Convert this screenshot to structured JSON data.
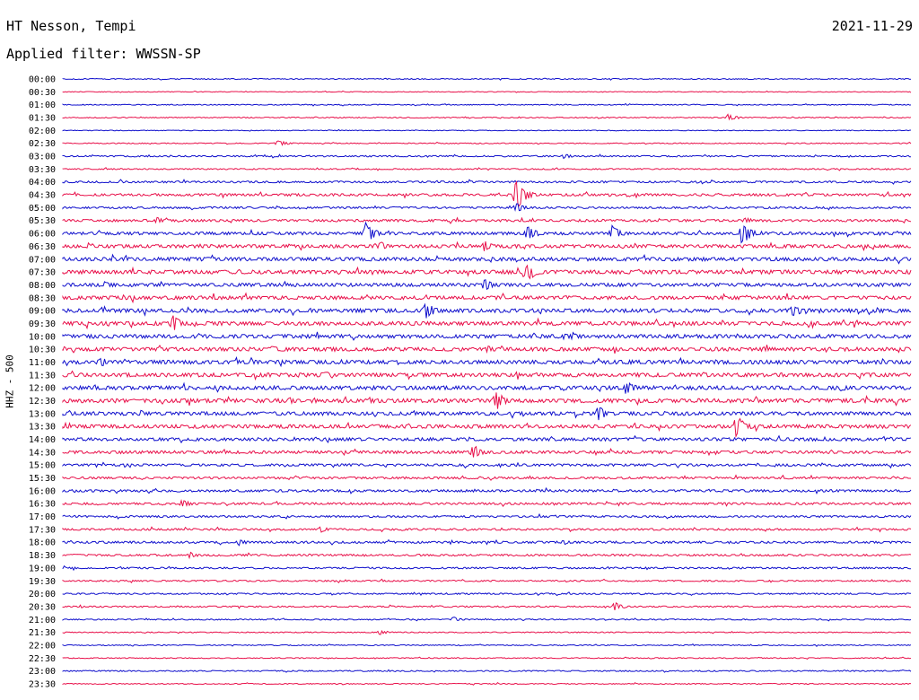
{
  "header": {
    "station": "HT Nesson, Tempi",
    "date": "2021-11-29",
    "filter_label": "Applied filter: WWSSN-SP"
  },
  "colors": {
    "trace_a": "#1010cc",
    "trace_b": "#e8104a",
    "text": "#000000",
    "background": "#ffffff"
  },
  "chart_data": {
    "type": "line",
    "subtype": "helicorder",
    "ylabel": "HHZ - 500",
    "row_interval_minutes": 30,
    "rows": [
      "00:00",
      "00:30",
      "01:00",
      "01:30",
      "02:00",
      "02:30",
      "03:00",
      "03:30",
      "04:00",
      "04:30",
      "05:00",
      "05:30",
      "06:00",
      "06:30",
      "07:00",
      "07:30",
      "08:00",
      "08:30",
      "09:00",
      "09:30",
      "10:00",
      "10:30",
      "11:00",
      "11:30",
      "12:00",
      "12:30",
      "13:00",
      "13:30",
      "14:00",
      "14:30",
      "15:00",
      "15:30",
      "16:00",
      "16:30",
      "17:00",
      "17:30",
      "18:00",
      "18:30",
      "19:00",
      "19:30",
      "20:00",
      "20:30",
      "21:00",
      "21:30",
      "22:00",
      "22:30",
      "23:00",
      "23:30"
    ],
    "noise_level": [
      0.4,
      0.3,
      0.4,
      0.4,
      0.3,
      0.4,
      0.6,
      0.5,
      0.8,
      1.0,
      0.8,
      1.0,
      1.2,
      1.4,
      1.5,
      1.6,
      1.4,
      1.5,
      1.6,
      1.6,
      1.6,
      1.6,
      1.6,
      1.6,
      1.6,
      1.7,
      1.5,
      1.5,
      1.3,
      1.2,
      1.0,
      0.9,
      1.0,
      0.9,
      0.8,
      0.8,
      0.9,
      0.8,
      0.7,
      0.6,
      0.6,
      0.6,
      0.5,
      0.4,
      0.4,
      0.4,
      0.5,
      0.4
    ],
    "events": [
      {
        "row": 3,
        "minute": 23.5,
        "amp": 4
      },
      {
        "row": 5,
        "minute": 7.6,
        "amp": 4
      },
      {
        "row": 6,
        "minute": 17.7,
        "amp": 3
      },
      {
        "row": 9,
        "minute": 16.0,
        "amp": 20
      },
      {
        "row": 10,
        "minute": 16.0,
        "amp": 6
      },
      {
        "row": 11,
        "minute": 3.3,
        "amp": 4
      },
      {
        "row": 11,
        "minute": 24.1,
        "amp": 4
      },
      {
        "row": 12,
        "minute": 10.7,
        "amp": 14
      },
      {
        "row": 12,
        "minute": 16.4,
        "amp": 10
      },
      {
        "row": 12,
        "minute": 19.4,
        "amp": 9
      },
      {
        "row": 12,
        "minute": 24.0,
        "amp": 14
      },
      {
        "row": 13,
        "minute": 11.2,
        "amp": 6
      },
      {
        "row": 13,
        "minute": 14.9,
        "amp": 7
      },
      {
        "row": 15,
        "minute": 16.4,
        "amp": 12
      },
      {
        "row": 16,
        "minute": 1.5,
        "amp": 5
      },
      {
        "row": 16,
        "minute": 14.9,
        "amp": 7
      },
      {
        "row": 18,
        "minute": 12.8,
        "amp": 12
      },
      {
        "row": 18,
        "minute": 25.8,
        "amp": 9
      },
      {
        "row": 19,
        "minute": 3.9,
        "amp": 9
      },
      {
        "row": 20,
        "minute": 17.7,
        "amp": 4
      },
      {
        "row": 20,
        "minute": 18.0,
        "amp": 5
      },
      {
        "row": 21,
        "minute": 7.4,
        "amp": 4
      },
      {
        "row": 21,
        "minute": 15.0,
        "amp": 4
      },
      {
        "row": 22,
        "minute": 1.3,
        "amp": 5
      },
      {
        "row": 22,
        "minute": 1.4,
        "amp": 5
      },
      {
        "row": 23,
        "minute": 9.2,
        "amp": 5
      },
      {
        "row": 24,
        "minute": 19.9,
        "amp": 9
      },
      {
        "row": 24,
        "minute": 27.5,
        "amp": 4
      },
      {
        "row": 25,
        "minute": 15.3,
        "amp": 12
      },
      {
        "row": 25,
        "minute": 8.0,
        "amp": 4
      },
      {
        "row": 26,
        "minute": 18.9,
        "amp": 10
      },
      {
        "row": 27,
        "minute": 23.8,
        "amp": 14
      },
      {
        "row": 29,
        "minute": 14.5,
        "amp": 9
      },
      {
        "row": 33,
        "minute": 4.2,
        "amp": 5
      },
      {
        "row": 35,
        "minute": 9.1,
        "amp": 4
      },
      {
        "row": 36,
        "minute": 6.2,
        "amp": 4
      },
      {
        "row": 36,
        "minute": 17.7,
        "amp": 3
      },
      {
        "row": 37,
        "minute": 4.5,
        "amp": 4
      },
      {
        "row": 41,
        "minute": 19.5,
        "amp": 5
      },
      {
        "row": 42,
        "minute": 13.8,
        "amp": 3
      },
      {
        "row": 43,
        "minute": 11.2,
        "amp": 3
      }
    ]
  }
}
